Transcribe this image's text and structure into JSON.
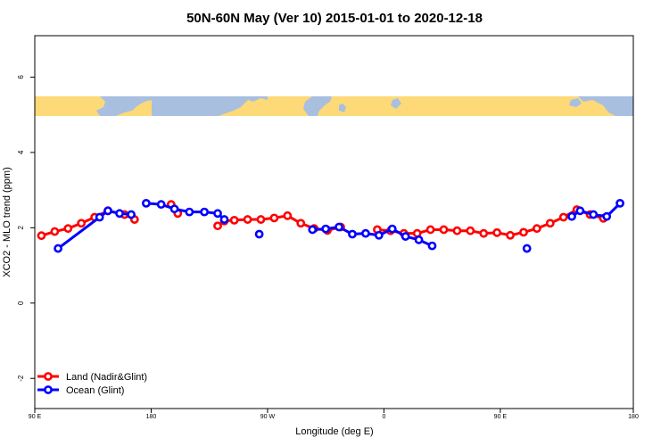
{
  "chart_data": {
    "type": "line",
    "title": "50N-60N May (Ver 10)   2015-01-01 to 2020-12-18",
    "xlabel": "Longitude (deg E)",
    "ylabel": "XCO2 - MLO trend (ppm)",
    "xlim": [
      90,
      450
    ],
    "ylim": [
      -2.8,
      7.1
    ],
    "x_ticks": [
      {
        "value": 90,
        "label": "90 E"
      },
      {
        "value": 160,
        "label": "180"
      },
      {
        "value": 230,
        "label": "90 W"
      },
      {
        "value": 300,
        "label": "0"
      },
      {
        "value": 370,
        "label": "90 E"
      },
      {
        "value": 450,
        "label": "180"
      }
    ],
    "y_ticks": [
      -2,
      0,
      2,
      4,
      6
    ],
    "legend_position": "bottom-left",
    "colors": {
      "land": "#ff0000",
      "ocean": "#0000ff",
      "map_land": "#fdd978",
      "map_ocean": "#a8bfe0"
    },
    "series": [
      {
        "name": "Land (Nadir&Glint)",
        "color": "#ff0000",
        "segments": [
          [
            [
              94,
              1.79
            ],
            [
              102,
              1.9
            ],
            [
              110,
              1.98
            ],
            [
              118,
              2.12
            ],
            [
              126,
              2.28
            ],
            [
              134,
              2.45
            ],
            [
              144,
              2.35
            ],
            [
              150,
              2.22
            ]
          ],
          [
            [
              172,
              2.62
            ],
            [
              176,
              2.38
            ]
          ],
          [
            [
              200,
              2.05
            ],
            [
              204,
              2.18
            ],
            [
              210,
              2.2
            ],
            [
              218,
              2.22
            ],
            [
              226,
              2.22
            ],
            [
              234,
              2.26
            ],
            [
              242,
              2.32
            ],
            [
              250,
              2.12
            ],
            [
              258,
              1.98
            ],
            [
              266,
              1.93
            ],
            [
              274,
              2.02
            ]
          ],
          [
            [
              296,
              1.95
            ],
            [
              304,
              1.92
            ],
            [
              312,
              1.85
            ],
            [
              320,
              1.85
            ],
            [
              328,
              1.95
            ],
            [
              336,
              1.95
            ],
            [
              344,
              1.92
            ],
            [
              352,
              1.92
            ],
            [
              360,
              1.85
            ],
            [
              368,
              1.87
            ],
            [
              376,
              1.8
            ],
            [
              384,
              1.88
            ],
            [
              392,
              1.98
            ],
            [
              400,
              2.12
            ],
            [
              408,
              2.28
            ],
            [
              416,
              2.48
            ],
            [
              424,
              2.35
            ],
            [
              432,
              2.25
            ]
          ]
        ]
      },
      {
        "name": "Ocean (Glint)",
        "color": "#0000ff",
        "segments": [
          [
            [
              104,
              1.45
            ],
            [
              129,
              2.28
            ],
            [
              134,
              2.45
            ],
            [
              141,
              2.38
            ],
            [
              148,
              2.35
            ]
          ],
          [
            [
              157,
              2.65
            ],
            [
              166,
              2.62
            ],
            [
              174,
              2.5
            ],
            [
              183,
              2.42
            ],
            [
              192,
              2.42
            ],
            [
              200,
              2.38
            ],
            [
              204,
              2.22
            ]
          ],
          [
            [
              225,
              1.83
            ]
          ],
          [
            [
              257,
              1.95
            ],
            [
              265,
              1.97
            ],
            [
              273,
              2.02
            ],
            [
              281,
              1.83
            ],
            [
              289,
              1.85
            ],
            [
              297,
              1.8
            ],
            [
              305,
              1.97
            ],
            [
              313,
              1.77
            ],
            [
              321,
              1.68
            ],
            [
              329,
              1.52
            ]
          ],
          [
            [
              386,
              1.45
            ]
          ],
          [
            [
              413,
              2.3
            ],
            [
              418,
              2.45
            ],
            [
              426,
              2.35
            ],
            [
              434,
              2.3
            ],
            [
              442,
              2.65
            ]
          ]
        ]
      }
    ]
  }
}
